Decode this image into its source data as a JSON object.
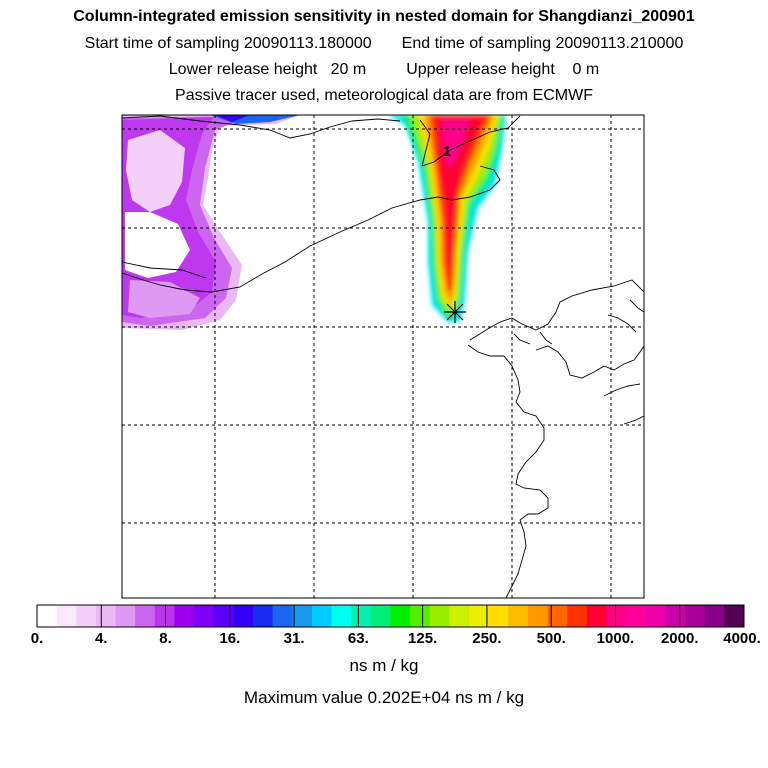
{
  "header": {
    "title": "Column-integrated emission sensitivity in nested domain for Shangdianzi_200901",
    "start_label": "Start time of sampling 20090113.180000",
    "end_label": "End time of sampling 20090113.210000",
    "lower_label": "Lower release height   20 m",
    "upper_label": "Upper release height    0 m",
    "tracer_label": "Passive tracer used, meteorological data are from ECMWF"
  },
  "map": {
    "marker_label": "1",
    "release_site_icon": "star-cross-icon"
  },
  "legend": {
    "ticks": [
      "0.",
      "4.",
      "8.",
      "16.",
      "31.",
      "63.",
      "125.",
      "250.",
      "500.",
      "1000.",
      "2000.",
      "4000."
    ],
    "colors": [
      "#ffffff",
      "#fbe8fb",
      "#f3d0f7",
      "#eab8f5",
      "#de99f2",
      "#cc66ee",
      "#bb33ee",
      "#9c00ee",
      "#7f00f5",
      "#5c00f8",
      "#3300f5",
      "#1a2cf0",
      "#1a66f0",
      "#1a99f0",
      "#00ccff",
      "#00ffee",
      "#00f0b0",
      "#00ee77",
      "#00ee00",
      "#55ee00",
      "#99ee00",
      "#ccee00",
      "#eeee00",
      "#ffdd00",
      "#ffbb00",
      "#ff9900",
      "#ff6600",
      "#ff3300",
      "#ff0033",
      "#ff0088",
      "#ff0099",
      "#ee00aa",
      "#cc00aa",
      "#aa0099",
      "#880088",
      "#550055"
    ],
    "units": "ns m / kg",
    "max_label": "Maximum value  0.202E+04 ns m / kg"
  },
  "colors": {
    "frame": "#000000",
    "grid": "#000000",
    "background": "#ffffff"
  }
}
